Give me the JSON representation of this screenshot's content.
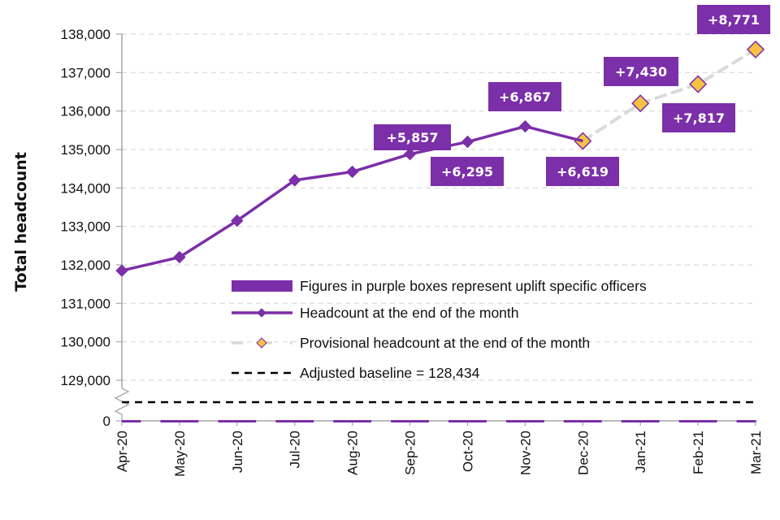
{
  "chart_data": {
    "type": "line",
    "title": "",
    "xlabel": "",
    "ylabel": "Total headcount",
    "categories": [
      "Apr-20",
      "May-20",
      "Jun-20",
      "Jul-20",
      "Aug-20",
      "Sep-20",
      "Oct-20",
      "Nov-20",
      "Dec-20",
      "Jan-21",
      "Feb-21",
      "Mar-21"
    ],
    "y_ticks": [
      "138,000",
      "137,000",
      "136,000",
      "135,000",
      "134,000",
      "133,000",
      "132,000",
      "131,000",
      "130,000",
      "129,000",
      "0"
    ],
    "y_tick_values": [
      138000,
      137000,
      136000,
      135000,
      134000,
      133000,
      132000,
      131000,
      130000,
      129000,
      0
    ],
    "ylim": [
      129000,
      138000
    ],
    "axis_break": true,
    "grid": true,
    "series": [
      {
        "name": "Headcount at the end of the month",
        "color": "#7B2FA8",
        "style": "solid-diamond",
        "values": [
          131850,
          132200,
          133150,
          134200,
          134420,
          134880,
          135200,
          135600,
          135220,
          null,
          null,
          null
        ]
      },
      {
        "name": "Provisional headcount at the end of the month",
        "color": "#DADADA",
        "marker_color": "#F6C243",
        "style": "dashed-diamond",
        "values": [
          null,
          null,
          null,
          null,
          null,
          null,
          null,
          null,
          135220,
          136200,
          136700,
          137600
        ]
      },
      {
        "name": "Adjusted baseline = 128,434",
        "color": "#000000",
        "style": "dashed",
        "value": 128434
      },
      {
        "name": "Figures in purple boxes represent uplift specific officers",
        "color": "#7B2FA8",
        "style": "bar",
        "values": [
          0,
          0,
          0,
          0,
          0,
          0,
          0,
          0,
          0,
          0,
          0,
          0
        ]
      }
    ],
    "annotations": [
      {
        "category": "Sep-20",
        "text": "+5,857",
        "position": "above"
      },
      {
        "category": "Oct-20",
        "text": "+6,295",
        "position": "below"
      },
      {
        "category": "Nov-20",
        "text": "+6,867",
        "position": "above"
      },
      {
        "category": "Dec-20",
        "text": "+6,619",
        "position": "below"
      },
      {
        "category": "Jan-21",
        "text": "+7,430",
        "position": "above"
      },
      {
        "category": "Feb-21",
        "text": "+7,817",
        "position": "below"
      },
      {
        "category": "Mar-21",
        "text": "+8,771",
        "position": "above"
      }
    ],
    "legend": {
      "placement": "center-right",
      "entries": [
        {
          "label": "Figures in purple boxes represent uplift specific officers",
          "kind": "bar"
        },
        {
          "label": "Headcount at the end of the month",
          "kind": "line"
        },
        {
          "label": "Provisional headcount at the end of the month",
          "kind": "provisional"
        },
        {
          "label": "Adjusted baseline = 128,434",
          "kind": "baseline"
        }
      ]
    },
    "colors": {
      "purple": "#7B2FA8",
      "diamond_fill": "#F6C243",
      "grid": "#D9D9D9",
      "axis": "#A6A6A6"
    }
  }
}
